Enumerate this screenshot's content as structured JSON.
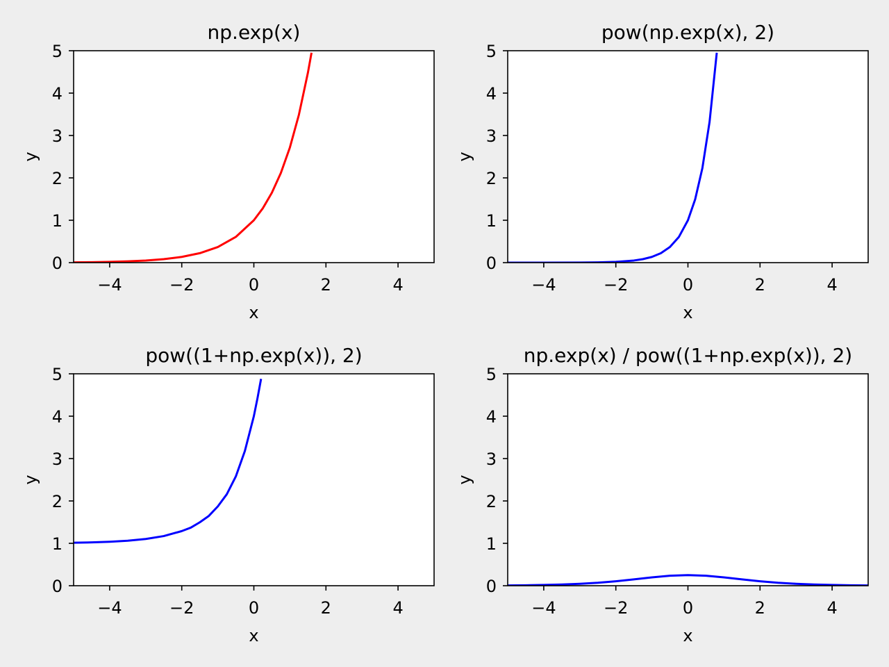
{
  "figure": {
    "background": "#eeeeee"
  },
  "chart_data": [
    {
      "type": "line",
      "title": "np.exp(x)",
      "xlabel": "x",
      "ylabel": "y",
      "xlim": [
        -5,
        5
      ],
      "ylim": [
        0,
        5
      ],
      "xticks": [
        -4,
        -2,
        0,
        2,
        4
      ],
      "yticks": [
        0,
        1,
        2,
        3,
        4,
        5
      ],
      "grid": false,
      "series": [
        {
          "color": "#ff0000",
          "x": [
            -5,
            -4.5,
            -4,
            -3.5,
            -3,
            -2.5,
            -2,
            -1.5,
            -1,
            -0.5,
            0,
            0.25,
            0.5,
            0.75,
            1,
            1.25,
            1.5,
            1.6
          ],
          "y": [
            0.007,
            0.011,
            0.018,
            0.03,
            0.05,
            0.082,
            0.135,
            0.223,
            0.368,
            0.607,
            1.0,
            1.284,
            1.649,
            2.117,
            2.718,
            3.49,
            4.482,
            4.953
          ]
        }
      ]
    },
    {
      "type": "line",
      "title": "pow(np.exp(x), 2)",
      "xlabel": "x",
      "ylabel": "y",
      "xlim": [
        -5,
        5
      ],
      "ylim": [
        0,
        5
      ],
      "xticks": [
        -4,
        -2,
        0,
        2,
        4
      ],
      "yticks": [
        0,
        1,
        2,
        3,
        4,
        5
      ],
      "grid": false,
      "series": [
        {
          "color": "#0000ff",
          "x": [
            -5,
            -4,
            -3,
            -2.5,
            -2,
            -1.5,
            -1.25,
            -1,
            -0.75,
            -0.5,
            -0.25,
            0,
            0.2,
            0.4,
            0.6,
            0.8
          ],
          "y": [
            0.0,
            0.0,
            0.002,
            0.007,
            0.018,
            0.05,
            0.082,
            0.135,
            0.223,
            0.368,
            0.607,
            1.0,
            1.492,
            2.226,
            3.32,
            4.953
          ]
        }
      ]
    },
    {
      "type": "line",
      "title": "pow((1+np.exp(x)), 2)",
      "xlabel": "x",
      "ylabel": "y",
      "xlim": [
        -5,
        5
      ],
      "ylim": [
        0,
        5
      ],
      "xticks": [
        -4,
        -2,
        0,
        2,
        4
      ],
      "yticks": [
        0,
        1,
        2,
        3,
        4,
        5
      ],
      "grid": false,
      "series": [
        {
          "color": "#0000ff",
          "x": [
            -5,
            -4.5,
            -4,
            -3.5,
            -3,
            -2.5,
            -2,
            -1.75,
            -1.5,
            -1.25,
            -1,
            -0.75,
            -0.5,
            -0.25,
            0,
            0.1,
            0.2
          ],
          "y": [
            1.014,
            1.022,
            1.037,
            1.061,
            1.102,
            1.171,
            1.289,
            1.37,
            1.496,
            1.646,
            1.871,
            2.159,
            2.578,
            3.176,
            4.0,
            4.42,
            4.88
          ]
        }
      ]
    },
    {
      "type": "line",
      "title": "np.exp(x) / pow((1+np.exp(x)), 2)",
      "xlabel": "x",
      "ylabel": "y",
      "xlim": [
        -5,
        5
      ],
      "ylim": [
        0,
        5
      ],
      "xticks": [
        -4,
        -2,
        0,
        2,
        4
      ],
      "yticks": [
        0,
        1,
        2,
        3,
        4,
        5
      ],
      "grid": false,
      "series": [
        {
          "color": "#0000ff",
          "x": [
            -5,
            -4.5,
            -4,
            -3.5,
            -3,
            -2.5,
            -2,
            -1.5,
            -1,
            -0.5,
            0,
            0.5,
            1,
            1.5,
            2,
            2.5,
            3,
            3.5,
            4,
            4.5,
            5
          ],
          "y": [
            0.007,
            0.011,
            0.018,
            0.029,
            0.045,
            0.07,
            0.105,
            0.149,
            0.197,
            0.235,
            0.25,
            0.235,
            0.197,
            0.149,
            0.105,
            0.07,
            0.045,
            0.029,
            0.018,
            0.011,
            0.007
          ]
        }
      ]
    }
  ]
}
